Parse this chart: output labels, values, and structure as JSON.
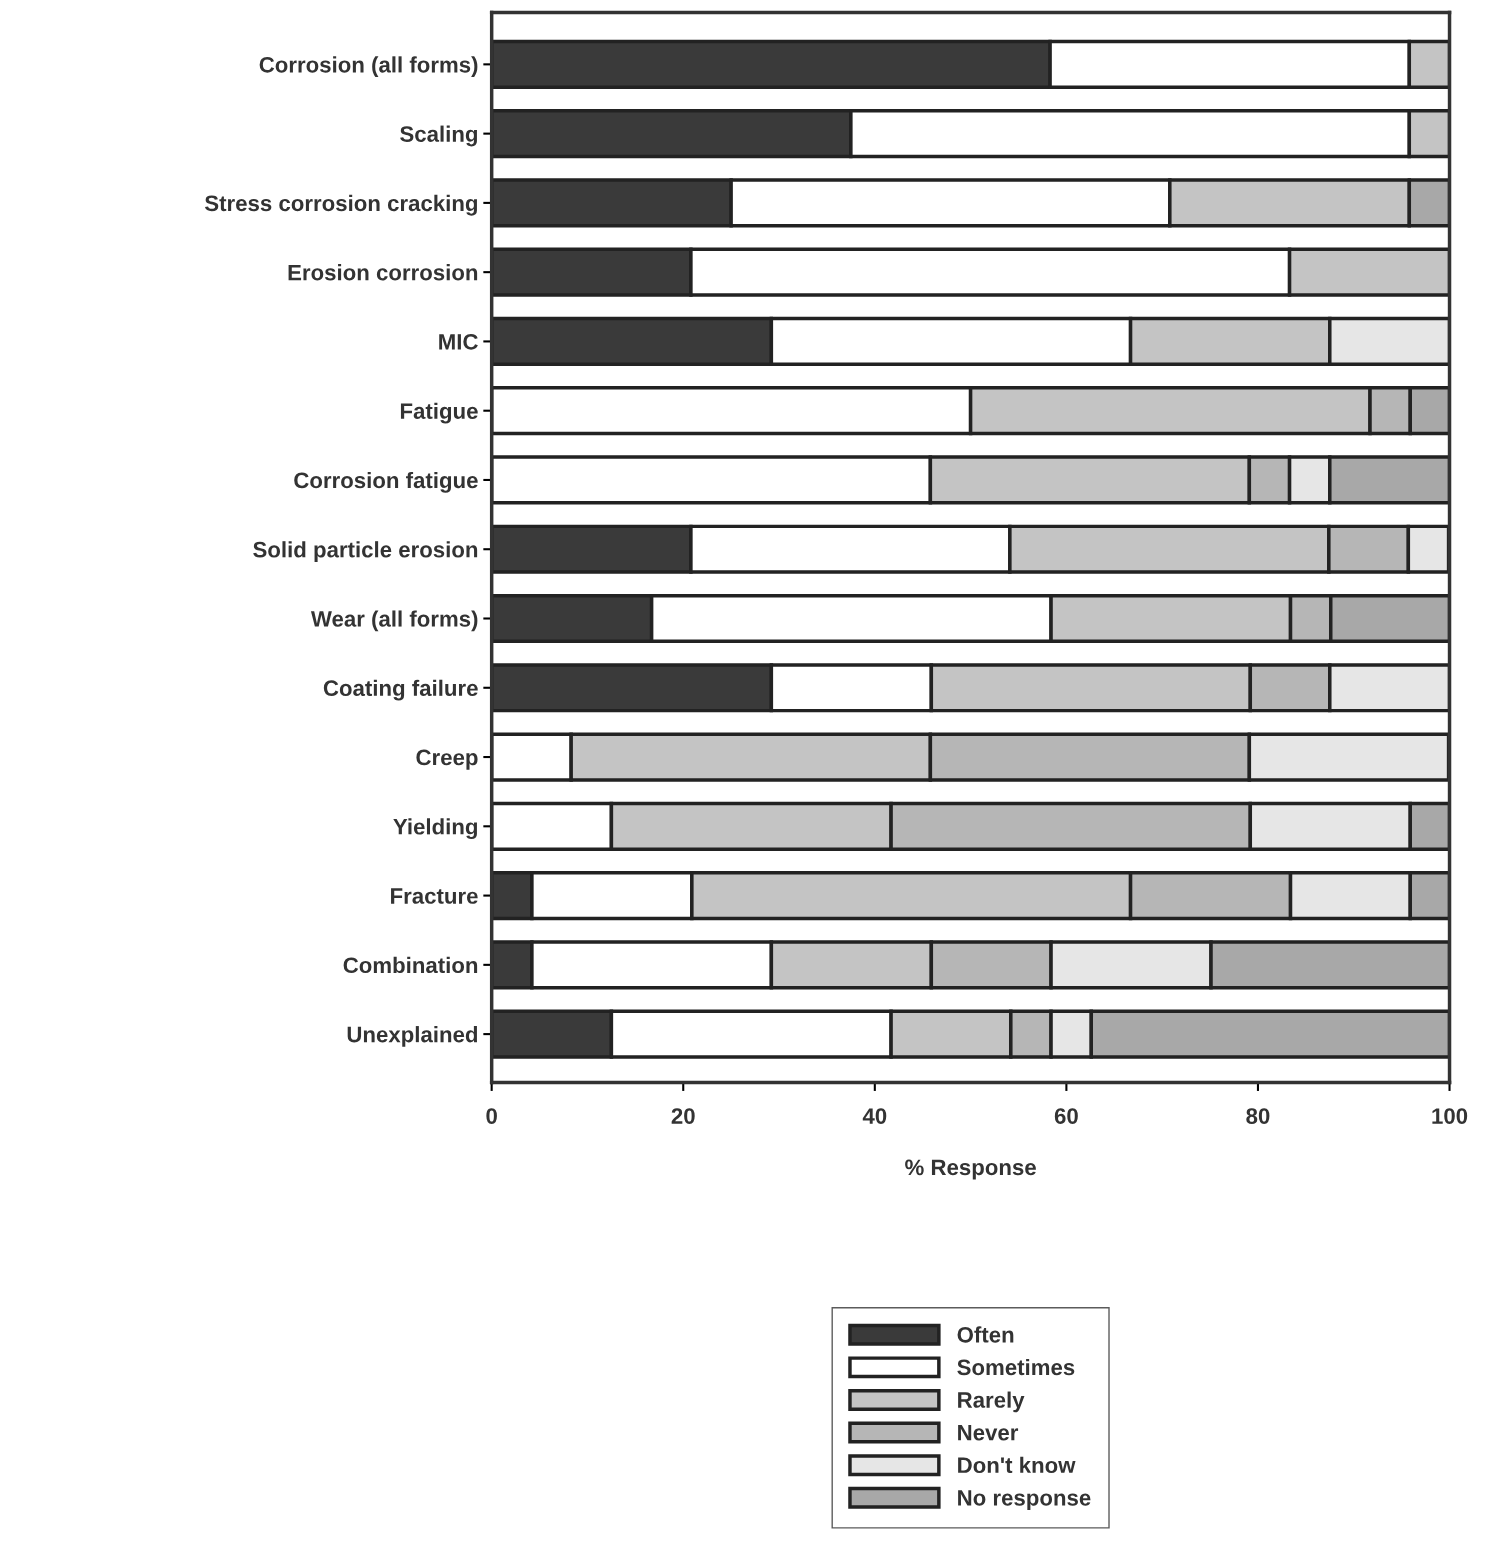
{
  "chart_data": {
    "type": "bar",
    "orientation": "horizontal",
    "stacked": true,
    "xlabel": "% Response",
    "categories": [
      "Corrosion (all forms)",
      "Scaling",
      "Stress corrosion cracking",
      "Erosion corrosion",
      "MIC",
      "Fatigue",
      "Corrosion fatigue",
      "Solid particle erosion",
      "Wear (all forms)",
      "Coating failure",
      "Creep",
      "Yielding",
      "Fracture",
      "Combination",
      "Unexplained"
    ],
    "series": [
      {
        "name": "Often",
        "color": "#3a3a3a",
        "values": [
          58.3,
          37.5,
          25,
          20.8,
          29.2,
          null,
          null,
          20.8,
          16.7,
          29.2,
          null,
          null,
          4.2,
          4.2,
          12.5
        ]
      },
      {
        "name": "Sometimes",
        "color": "#ffffff",
        "values": [
          37.5,
          58.3,
          45.8,
          62.5,
          37.5,
          50,
          45.8,
          33.3,
          41.7,
          16.7,
          8.3,
          12.5,
          16.7,
          25,
          29.2
        ]
      },
      {
        "name": "Rarely",
        "color": "#c4c4c4",
        "values": [
          4.2,
          4.2,
          25,
          16.7,
          20.8,
          41.7,
          33.3,
          33.3,
          25,
          33.3,
          37.5,
          29.2,
          45.8,
          16.7,
          12.5
        ]
      },
      {
        "name": "Never",
        "color": "#b6b6b6",
        "values": [
          null,
          null,
          null,
          null,
          null,
          4.2,
          4.2,
          8.3,
          4.2,
          8.3,
          33.3,
          37.5,
          16.7,
          12.5,
          4.2
        ]
      },
      {
        "name": "Don't know",
        "color": "#e6e6e6",
        "values": [
          null,
          null,
          null,
          null,
          12.5,
          null,
          4.2,
          4.2,
          null,
          12.5,
          20.8,
          16.7,
          12.5,
          16.7,
          4.2
        ]
      },
      {
        "name": "No response",
        "color": "#a8a8a8",
        "values": [
          null,
          null,
          4.2,
          null,
          null,
          4.1,
          12.5,
          null,
          12.4,
          null,
          null,
          4.1,
          4.1,
          24.9,
          37.4
        ]
      }
    ],
    "xlim": [
      0,
      100
    ],
    "xticks": [
      0,
      20,
      40,
      60,
      80,
      100
    ],
    "grid": false,
    "legend": "bottom"
  }
}
